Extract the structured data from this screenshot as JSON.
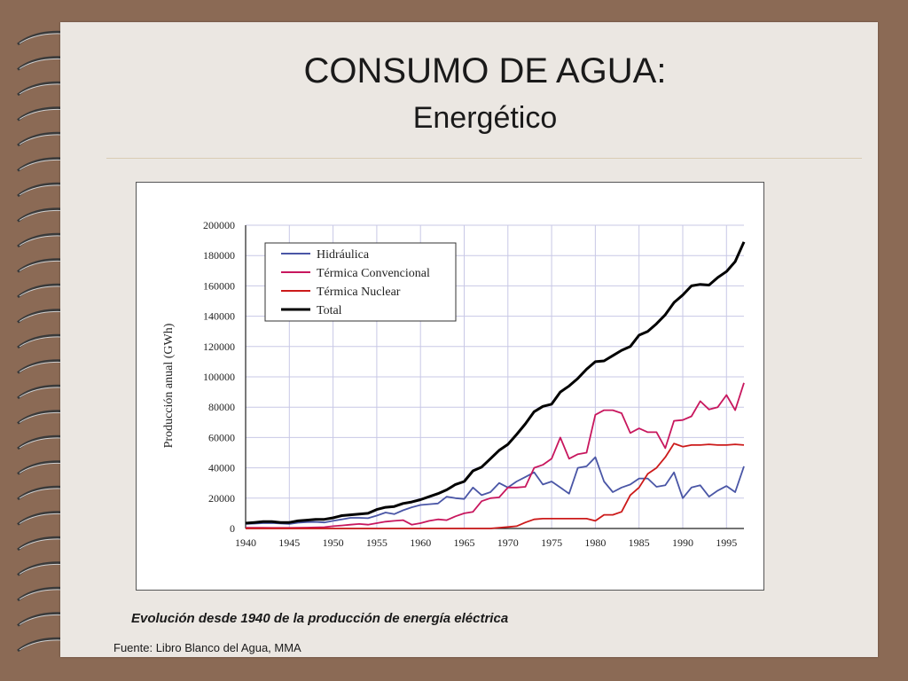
{
  "slide": {
    "title": "CONSUMO DE AGUA:",
    "subtitle": "Energético",
    "caption": "Evolución desde 1940 de la producción de energía eléctrica",
    "source": "Fuente: Libro Blanco del Agua, MMA"
  },
  "colors": {
    "background": "#8b6a55",
    "page": "#ebe7e2",
    "grid": "#c8c8e6"
  },
  "chart_data": {
    "type": "line",
    "title": "",
    "xlabel": "",
    "ylabel": "Producción anual (GWh)",
    "xlim": [
      1940,
      1997
    ],
    "ylim": [
      0,
      200000
    ],
    "xticks": [
      1940,
      1945,
      1950,
      1955,
      1960,
      1965,
      1970,
      1975,
      1980,
      1985,
      1990,
      1995
    ],
    "yticks": [
      0,
      20000,
      40000,
      60000,
      80000,
      100000,
      120000,
      140000,
      160000,
      180000,
      200000
    ],
    "grid": true,
    "legend_position": "top-left",
    "x": [
      1940,
      1941,
      1942,
      1943,
      1944,
      1945,
      1946,
      1947,
      1948,
      1949,
      1950,
      1951,
      1952,
      1953,
      1954,
      1955,
      1956,
      1957,
      1958,
      1959,
      1960,
      1961,
      1962,
      1963,
      1964,
      1965,
      1966,
      1967,
      1968,
      1969,
      1970,
      1971,
      1972,
      1973,
      1974,
      1975,
      1976,
      1977,
      1978,
      1979,
      1980,
      1981,
      1982,
      1983,
      1984,
      1985,
      1986,
      1987,
      1988,
      1989,
      1990,
      1991,
      1992,
      1993,
      1994,
      1995,
      1996,
      1997
    ],
    "series": [
      {
        "name": "Hidráulica",
        "color": "#4a56a6",
        "values": [
          3000,
          3200,
          3500,
          3600,
          3300,
          3000,
          3800,
          4200,
          4300,
          4000,
          5000,
          6000,
          7000,
          7000,
          6800,
          8500,
          10500,
          9500,
          12000,
          14000,
          15500,
          16000,
          16500,
          21000,
          20000,
          19500,
          27000,
          22000,
          24000,
          30000,
          27000,
          31000,
          34000,
          37000,
          29000,
          31000,
          27000,
          23000,
          40000,
          41000,
          47000,
          31000,
          24000,
          27000,
          29000,
          33000,
          33000,
          27500,
          28500,
          37000,
          20000,
          27000,
          28500,
          21000,
          25000,
          28000,
          24000,
          41000
        ]
      },
      {
        "name": "Térmica Convencional",
        "color": "#c8175e",
        "values": [
          500,
          500,
          500,
          400,
          400,
          400,
          500,
          600,
          700,
          900,
          1500,
          2000,
          2500,
          3000,
          2500,
          3500,
          4500,
          5000,
          5500,
          2500,
          3500,
          5000,
          6000,
          5500,
          8000,
          10000,
          11000,
          18000,
          20000,
          20500,
          27000,
          27000,
          27500,
          40000,
          42000,
          46000,
          60000,
          46000,
          49000,
          50000,
          75000,
          78000,
          78000,
          76000,
          63000,
          66000,
          63500,
          63500,
          53000,
          71000,
          71500,
          74000,
          84000,
          78500,
          80000,
          88000,
          78000,
          96000
        ]
      },
      {
        "name": "Térmica Nuclear",
        "color": "#cc1a1a",
        "values": [
          0,
          0,
          0,
          0,
          0,
          0,
          0,
          0,
          0,
          0,
          0,
          0,
          0,
          0,
          0,
          0,
          0,
          0,
          0,
          0,
          0,
          0,
          0,
          0,
          0,
          0,
          0,
          0,
          0,
          500,
          1000,
          1500,
          4000,
          6000,
          6500,
          6500,
          6500,
          6500,
          6500,
          6500,
          5000,
          9000,
          9000,
          11000,
          22000,
          27000,
          36000,
          40000,
          47000,
          56000,
          54000,
          55000,
          55000,
          55500,
          55000,
          55000,
          55500,
          55000
        ]
      },
      {
        "name": "Total",
        "color": "#000000",
        "values": [
          3500,
          4000,
          4500,
          4500,
          4000,
          4000,
          5000,
          5500,
          6000,
          6000,
          7000,
          8500,
          9000,
          9500,
          10000,
          12500,
          14000,
          14500,
          16500,
          17500,
          19000,
          21000,
          23000,
          25500,
          29000,
          31000,
          38000,
          40500,
          46000,
          51500,
          55500,
          62000,
          69000,
          77000,
          80500,
          82000,
          90000,
          94000,
          99000,
          105000,
          110000,
          110500,
          114000,
          117500,
          120000,
          127500,
          130000,
          135000,
          141000,
          149000,
          154000,
          160000,
          161000,
          160500,
          165500,
          169500,
          176000,
          189000
        ]
      }
    ]
  }
}
